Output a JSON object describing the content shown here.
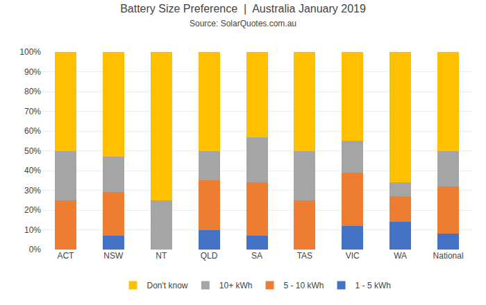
{
  "chart_data": {
    "type": "bar",
    "title": "Battery Size Preference  |  Australia January 2019",
    "subtitle": "Source: SolarQuotes.com.au",
    "categories": [
      "ACT",
      "NSW",
      "NT",
      "QLD",
      "SA",
      "TAS",
      "VIC",
      "WA",
      "National"
    ],
    "series": [
      {
        "name": "1 - 5 kWh",
        "color": "#4472c4",
        "values": [
          0,
          7,
          0,
          10,
          7,
          0,
          12,
          14,
          8
        ]
      },
      {
        "name": "5 - 10 kWh",
        "color": "#ed7d31",
        "values": [
          25,
          22,
          0,
          25,
          27,
          25,
          27,
          13,
          24
        ]
      },
      {
        "name": "10+ kWh",
        "color": "#a5a5a5",
        "values": [
          25,
          18,
          25,
          15,
          23,
          25,
          16,
          7,
          18
        ]
      },
      {
        "name": "Don't know",
        "color": "#ffc000",
        "values": [
          50,
          53,
          75,
          50,
          43,
          50,
          45,
          66,
          50
        ]
      }
    ],
    "stacked": true,
    "ylim": [
      0,
      100
    ],
    "yticks": [
      {
        "value": 0,
        "label": "0%"
      },
      {
        "value": 10,
        "label": "10%"
      },
      {
        "value": 20,
        "label": "20%"
      },
      {
        "value": 30,
        "label": "30%"
      },
      {
        "value": 40,
        "label": "40%"
      },
      {
        "value": 50,
        "label": "50%"
      },
      {
        "value": 60,
        "label": "60%"
      },
      {
        "value": 70,
        "label": "70%"
      },
      {
        "value": 80,
        "label": "80%"
      },
      {
        "value": 90,
        "label": "90%"
      },
      {
        "value": 100,
        "label": "100%"
      }
    ],
    "grid": true,
    "legend": "bottom"
  }
}
